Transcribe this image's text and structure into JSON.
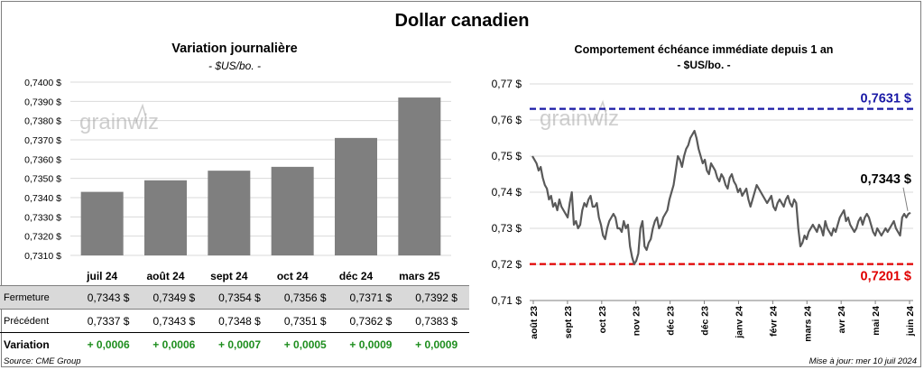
{
  "title": "Dollar canadien",
  "source": "Source: CME Group",
  "updated": "Mise à jour: mer 10 juil 2024",
  "watermark": "grainwiz",
  "colors": {
    "bar": "#7f7f7f",
    "line": "#595959",
    "high": "#1a1aa6",
    "low": "#e00000",
    "positive": "#1e8e1e"
  },
  "chart_data": [
    {
      "type": "bar",
      "title": "Variation  journalière",
      "subtitle": "- $US/bo. -",
      "categories": [
        "juil 24",
        "août 24",
        "sept 24",
        "oct 24",
        "déc 24",
        "mars 25"
      ],
      "values": [
        0.7343,
        0.7349,
        0.7354,
        0.7356,
        0.7371,
        0.7392
      ],
      "ylim": [
        0.731,
        0.74
      ],
      "yticks": [
        "0,7310 $",
        "0,7320 $",
        "0,7330 $",
        "0,7340 $",
        "0,7350 $",
        "0,7360 $",
        "0,7370 $",
        "0,7380 $",
        "0,7390 $",
        "0,7400 $"
      ],
      "grid": true
    },
    {
      "type": "line",
      "title": "Comportement échéance immédiate depuis 1 an",
      "subtitle": "- $US/bo. -",
      "ylim": [
        0.71,
        0.77
      ],
      "yticks": [
        "0,71 $",
        "0,72 $",
        "0,73 $",
        "0,74 $",
        "0,75 $",
        "0,76 $",
        "0,77 $"
      ],
      "xticks": [
        "août 23",
        "sept 23",
        "oct 23",
        "nov 23",
        "déc 23",
        "déc 23",
        "janv 24",
        "févr 24",
        "mars 24",
        "avr 24",
        "mai 24",
        "juin 24"
      ],
      "high": {
        "value": 0.7631,
        "label": "0,7631 $"
      },
      "low": {
        "value": 0.7201,
        "label": "0,7201 $"
      },
      "last": {
        "value": 0.7343,
        "label": "0,7343 $"
      },
      "grid": true,
      "values": [
        0.75,
        0.749,
        0.748,
        0.746,
        0.747,
        0.744,
        0.742,
        0.741,
        0.738,
        0.739,
        0.736,
        0.737,
        0.735,
        0.738,
        0.736,
        0.735,
        0.734,
        0.733,
        0.737,
        0.74,
        0.731,
        0.732,
        0.73,
        0.731,
        0.735,
        0.737,
        0.736,
        0.738,
        0.739,
        0.736,
        0.736,
        0.737,
        0.733,
        0.731,
        0.728,
        0.727,
        0.73,
        0.732,
        0.733,
        0.734,
        0.733,
        0.73,
        0.73,
        0.729,
        0.732,
        0.73,
        0.731,
        0.725,
        0.722,
        0.7201,
        0.721,
        0.723,
        0.73,
        0.732,
        0.725,
        0.724,
        0.726,
        0.727,
        0.73,
        0.732,
        0.733,
        0.73,
        0.731,
        0.733,
        0.734,
        0.735,
        0.738,
        0.74,
        0.742,
        0.746,
        0.75,
        0.749,
        0.747,
        0.75,
        0.752,
        0.753,
        0.755,
        0.756,
        0.757,
        0.755,
        0.752,
        0.75,
        0.748,
        0.749,
        0.746,
        0.745,
        0.748,
        0.747,
        0.746,
        0.744,
        0.743,
        0.745,
        0.744,
        0.742,
        0.741,
        0.744,
        0.745,
        0.743,
        0.742,
        0.74,
        0.741,
        0.739,
        0.74,
        0.741,
        0.738,
        0.736,
        0.738,
        0.74,
        0.742,
        0.741,
        0.74,
        0.739,
        0.738,
        0.737,
        0.738,
        0.739,
        0.736,
        0.735,
        0.737,
        0.738,
        0.737,
        0.736,
        0.738,
        0.739,
        0.737,
        0.736,
        0.738,
        0.737,
        0.73,
        0.725,
        0.726,
        0.728,
        0.727,
        0.729,
        0.73,
        0.731,
        0.73,
        0.729,
        0.731,
        0.73,
        0.728,
        0.732,
        0.73,
        0.729,
        0.728,
        0.73,
        0.729,
        0.731,
        0.733,
        0.734,
        0.735,
        0.732,
        0.733,
        0.731,
        0.73,
        0.729,
        0.73,
        0.732,
        0.733,
        0.731,
        0.733,
        0.734,
        0.733,
        0.731,
        0.729,
        0.728,
        0.73,
        0.729,
        0.728,
        0.729,
        0.73,
        0.729,
        0.73,
        0.731,
        0.732,
        0.73,
        0.729,
        0.728,
        0.733,
        0.734,
        0.733,
        0.734,
        0.7343
      ]
    }
  ],
  "table": {
    "rows": [
      {
        "label": "Fermeture",
        "values": [
          "0,7343  $",
          "0,7349  $",
          "0,7354  $",
          "0,7356  $",
          "0,7371  $",
          "0,7392  $"
        ]
      },
      {
        "label": "Précédent",
        "values": [
          "0,7337  $",
          "0,7343  $",
          "0,7348  $",
          "0,7351  $",
          "0,7362  $",
          "0,7383  $"
        ]
      },
      {
        "label": "Variation",
        "values": [
          "+ 0,0006",
          "+ 0,0006",
          "+ 0,0007",
          "+ 0,0005",
          "+ 0,0009",
          "+ 0,0009"
        ]
      }
    ]
  }
}
